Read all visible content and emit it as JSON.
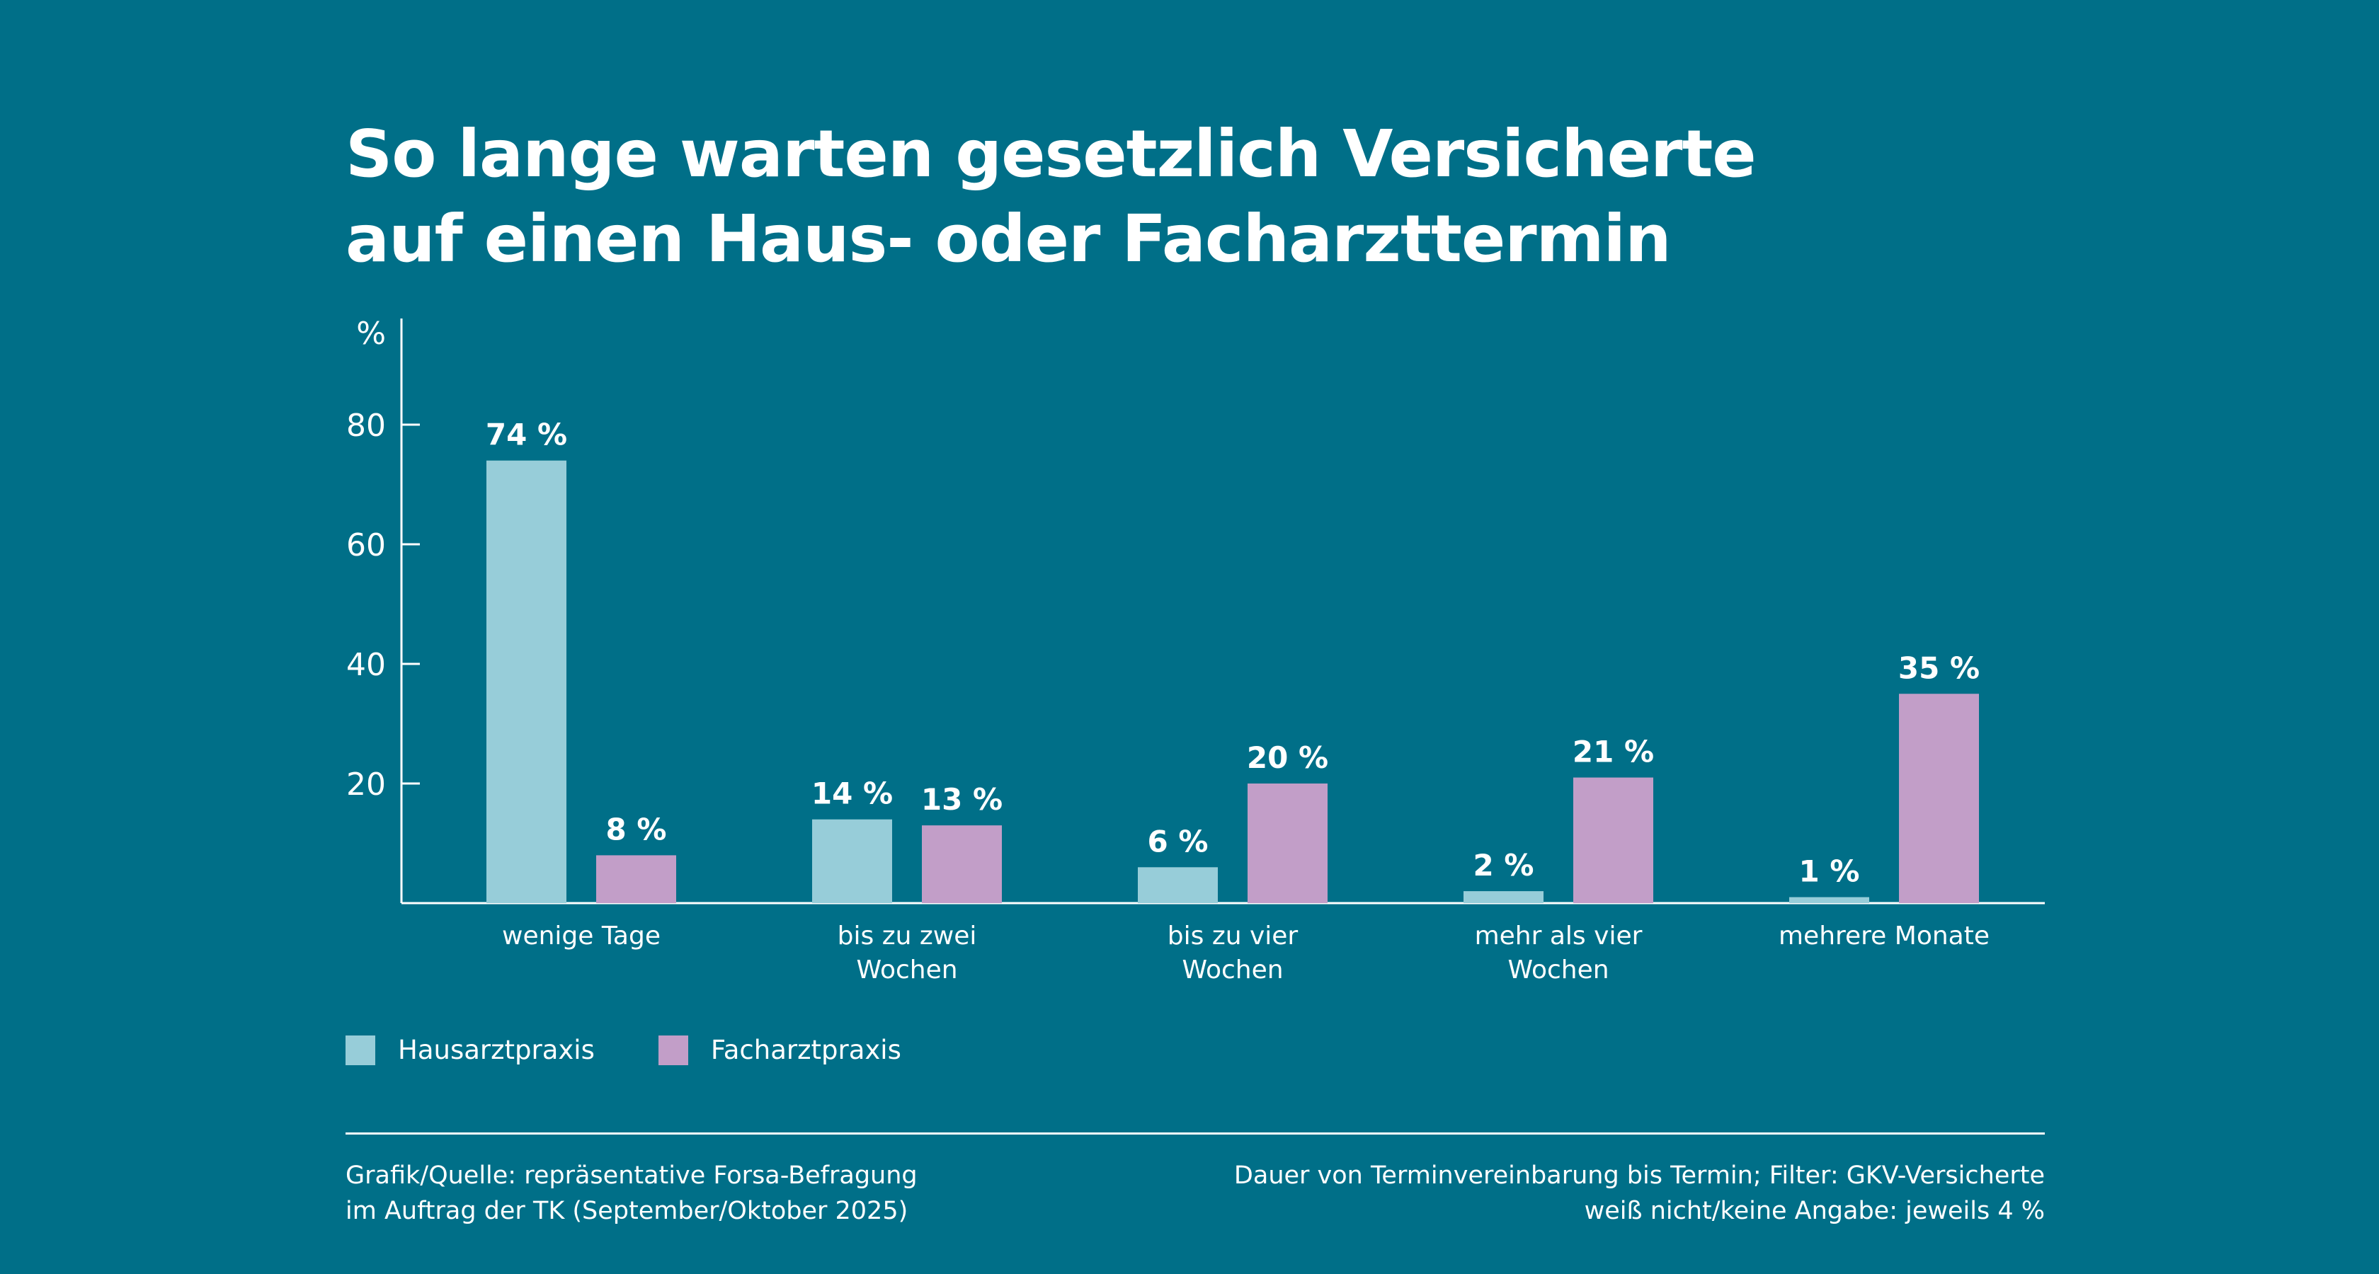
{
  "title": {
    "line1": "So lange warten gesetzlich Versicherte",
    "line2": "auf einen Haus- oder Facharzttermin"
  },
  "colors": {
    "background": "#006f88",
    "hausarzt": "#97cdd9",
    "facharzt": "#c29ec8",
    "text": "#ffffff"
  },
  "chart_data": {
    "type": "bar",
    "title": "So lange warten gesetzlich Versicherte auf einen Haus- oder Facharzttermin",
    "ylabel": "%",
    "xlabel": "",
    "ylim": [
      0,
      95
    ],
    "yticks": [
      20,
      40,
      60,
      80
    ],
    "grid": false,
    "legend_position": "bottom-left",
    "categories": [
      [
        "wenige Tage"
      ],
      [
        "bis zu zwei",
        "Wochen"
      ],
      [
        "bis zu vier",
        "Wochen"
      ],
      [
        "mehr als vier",
        "Wochen"
      ],
      [
        "mehrere Monate"
      ]
    ],
    "series": [
      {
        "name": "Hausarztpraxis",
        "color": "#97cdd9",
        "values": [
          74,
          14,
          6,
          2,
          1
        ],
        "labels": [
          "74 %",
          "14 %",
          "6 %",
          "2 %",
          "1 %"
        ]
      },
      {
        "name": "Facharztpraxis",
        "color": "#c29ec8",
        "values": [
          8,
          13,
          20,
          21,
          35
        ],
        "labels": [
          "8 %",
          "13 %",
          "20 %",
          "21 %",
          "35 %"
        ]
      }
    ]
  },
  "legend": [
    {
      "label": "Hausarztpraxis",
      "color": "#97cdd9"
    },
    {
      "label": "Facharztpraxis",
      "color": "#c29ec8"
    }
  ],
  "footer": {
    "source_line1": "Grafik/Quelle: repräsentative Forsa-Befragung",
    "source_line2": "im Auftrag der TK (September/Oktober 2025)",
    "note_line1": "Dauer von Terminvereinbarung bis Termin; Filter: GKV-Versicherte",
    "note_line2": "weiß nicht/keine Angabe: jeweils 4 %"
  }
}
